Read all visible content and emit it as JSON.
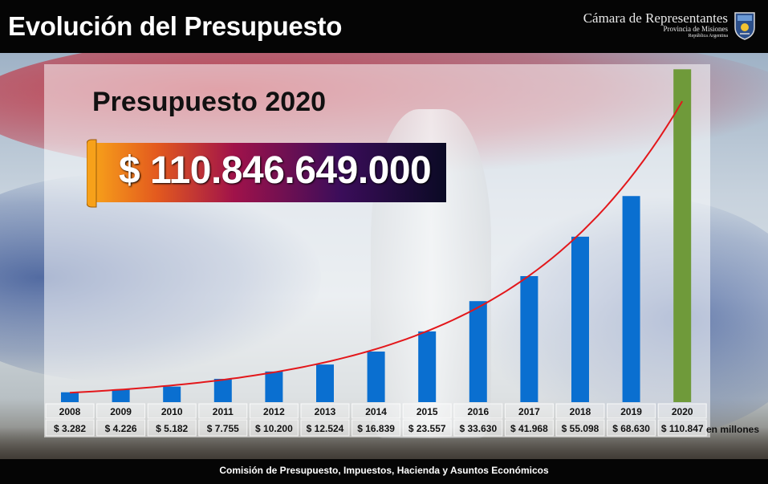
{
  "header": {
    "title": "Evolución del Presupuesto",
    "brand": {
      "name": "Cámara de Representantes",
      "sub1": "Provincia de Misiones",
      "sub2": "República Argentina"
    }
  },
  "highlight": {
    "subtitle": "Presupuesto 2020",
    "value": "$ 110.846.649.000"
  },
  "units_label": "en millones",
  "footer": {
    "text": "Comisión de Presupuesto, Impuestos, Hacienda y Asuntos Económicos"
  },
  "colors": {
    "bar": "#0a6fd0",
    "highlight_bar": "#6f9a3a",
    "trend": "#e3171b"
  },
  "chart_data": {
    "type": "bar",
    "categories": [
      "2008",
      "2009",
      "2010",
      "2011",
      "2012",
      "2013",
      "2014",
      "2015",
      "2016",
      "2017",
      "2018",
      "2019",
      "2020"
    ],
    "values": [
      3282,
      4226,
      5182,
      7755,
      10200,
      12524,
      16839,
      23557,
      33630,
      41968,
      55098,
      68630,
      110847
    ],
    "value_labels": [
      "$ 3.282",
      "$ 4.226",
      "$ 5.182",
      "$ 7.755",
      "$ 10.200",
      "$ 12.524",
      "$ 16.839",
      "$ 23.557",
      "$ 33.630",
      "$ 41.968",
      "$ 55.098",
      "$ 68.630",
      "$ 110.847"
    ],
    "highlight_category": "2020",
    "trendline": "exponential",
    "ylim": [
      0,
      112000
    ],
    "grid": false,
    "legend": "none"
  }
}
